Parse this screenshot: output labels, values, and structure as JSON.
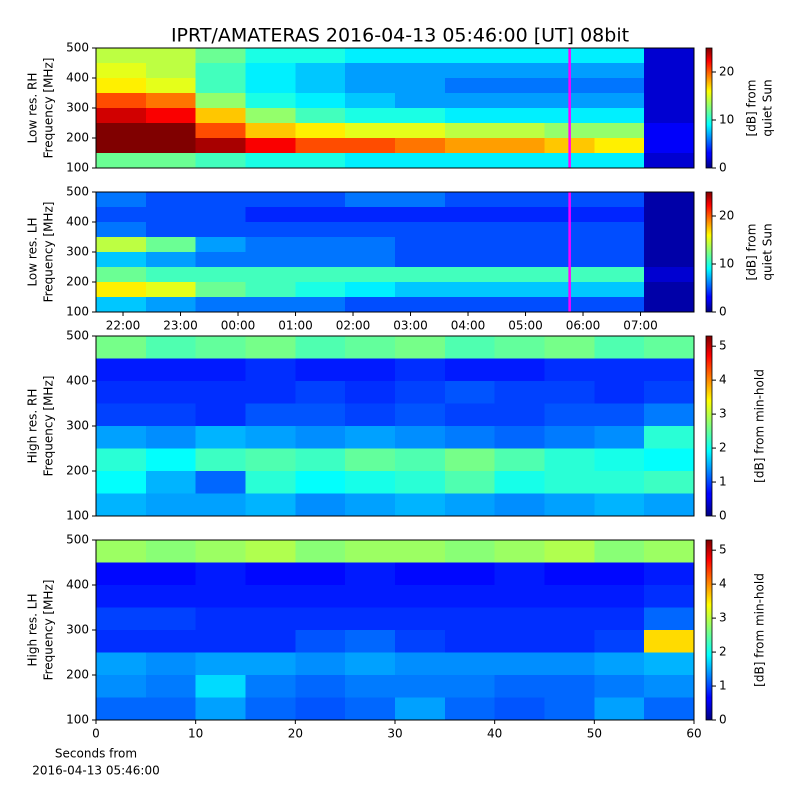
{
  "chart_data": [
    {
      "type": "heatmap",
      "title": "IPRT/AMATERAS 2016-04-13 05:46:00 [UT]   08bit",
      "ylabel_lines": [
        "Low res. RH",
        "Frequency [MHz]"
      ],
      "cbar_label_lines": [
        "[dB] from",
        "quiet Sun"
      ],
      "colormap": "jet",
      "xlim": [
        21.53,
        31.93
      ],
      "ylim": [
        100,
        500
      ],
      "yticks": [
        100,
        200,
        300,
        400,
        500
      ],
      "clim": [
        0,
        25
      ],
      "cbar_ticks": [
        0,
        10,
        20
      ],
      "marker_x": 29.767,
      "marker_color": "#ff00ff",
      "z": [
        [
          14,
          14,
          12,
          10,
          10,
          9,
          9,
          9,
          9,
          9,
          9,
          2
        ],
        [
          15,
          14,
          11,
          9,
          8,
          7,
          7,
          7,
          7,
          7,
          7,
          2
        ],
        [
          16,
          15,
          11,
          9,
          8,
          7,
          7,
          6,
          6,
          6,
          6,
          2
        ],
        [
          20,
          19,
          13,
          10,
          9,
          8,
          7,
          7,
          7,
          7,
          7,
          2
        ],
        [
          23,
          22,
          17,
          13,
          11,
          10,
          10,
          9,
          9,
          9,
          9,
          2
        ],
        [
          25,
          25,
          20,
          17,
          16,
          15,
          15,
          14,
          14,
          13,
          13,
          3
        ],
        [
          25,
          25,
          24,
          22,
          20,
          20,
          19,
          18,
          18,
          17,
          16,
          3
        ],
        [
          12,
          12,
          11,
          10,
          10,
          9,
          9,
          9,
          9,
          9,
          9,
          2
        ]
      ]
    },
    {
      "type": "heatmap",
      "ylabel_lines": [
        "Low res. LH",
        "Frequency [MHz]"
      ],
      "cbar_label_lines": [
        "[dB] from",
        "quiet Sun"
      ],
      "colormap": "jet",
      "xlim": [
        21.53,
        31.93
      ],
      "ylim": [
        100,
        500
      ],
      "yticks": [
        100,
        200,
        300,
        400,
        500
      ],
      "xticks": [
        {
          "value": 22,
          "label": "22:00"
        },
        {
          "value": 23,
          "label": "23:00"
        },
        {
          "value": 24,
          "label": "00:00"
        },
        {
          "value": 25,
          "label": "01:00"
        },
        {
          "value": 26,
          "label": "02:00"
        },
        {
          "value": 27,
          "label": "03:00"
        },
        {
          "value": 28,
          "label": "04:00"
        },
        {
          "value": 29,
          "label": "05:00"
        },
        {
          "value": 30,
          "label": "06:00"
        },
        {
          "value": 31,
          "label": "07:00"
        }
      ],
      "clim": [
        0,
        25
      ],
      "cbar_ticks": [
        0,
        10,
        20
      ],
      "marker_x": 29.767,
      "marker_color": "#ff00ff",
      "z": [
        [
          6,
          5,
          5,
          5,
          5,
          6,
          6,
          5,
          5,
          5,
          5,
          1
        ],
        [
          5,
          5,
          5,
          4,
          4,
          4,
          4,
          4,
          4,
          4,
          4,
          1
        ],
        [
          6,
          5,
          5,
          5,
          5,
          5,
          5,
          5,
          5,
          5,
          5,
          1
        ],
        [
          14,
          12,
          7,
          6,
          6,
          6,
          5,
          5,
          5,
          5,
          5,
          1
        ],
        [
          8,
          7,
          6,
          6,
          6,
          6,
          5,
          5,
          5,
          5,
          5,
          1
        ],
        [
          12,
          11,
          11,
          11,
          11,
          11,
          11,
          11,
          11,
          11,
          11,
          2
        ],
        [
          16,
          15,
          12,
          11,
          10,
          9,
          8,
          8,
          8,
          8,
          8,
          1
        ],
        [
          8,
          7,
          6,
          6,
          6,
          5,
          5,
          5,
          5,
          5,
          5,
          1
        ]
      ]
    },
    {
      "type": "heatmap",
      "ylabel_lines": [
        "High res. RH",
        "Frequency [MHz]"
      ],
      "cbar_label_lines": [
        "[dB] from min-hold"
      ],
      "colormap": "jet",
      "xlim": [
        0,
        60
      ],
      "ylim": [
        100,
        500
      ],
      "yticks": [
        100,
        200,
        300,
        400,
        500
      ],
      "clim": [
        0,
        5.3
      ],
      "cbar_ticks": [
        0,
        1,
        2,
        3,
        4,
        5
      ],
      "z": [
        [
          2.6,
          2.4,
          2.5,
          2.6,
          2.4,
          2.5,
          2.6,
          2.4,
          2.5,
          2.6,
          2.4,
          2.5
        ],
        [
          0.8,
          0.8,
          0.8,
          0.9,
          0.8,
          0.8,
          0.9,
          0.8,
          0.8,
          0.9,
          0.9,
          0.9
        ],
        [
          0.9,
          0.9,
          0.9,
          0.9,
          1.0,
          0.9,
          1.0,
          1.1,
          1.0,
          1.0,
          0.9,
          1.0
        ],
        [
          1.0,
          1.0,
          0.9,
          1.1,
          1.1,
          1.0,
          1.1,
          1.0,
          1.0,
          1.1,
          1.1,
          1.3
        ],
        [
          1.5,
          1.4,
          1.6,
          1.5,
          1.4,
          1.5,
          1.4,
          1.3,
          1.2,
          1.3,
          1.4,
          2.2
        ],
        [
          2.2,
          2.0,
          2.3,
          2.4,
          2.3,
          2.5,
          2.4,
          2.6,
          2.4,
          2.2,
          2.1,
          2.0
        ],
        [
          2.0,
          1.6,
          1.2,
          2.2,
          2.0,
          2.1,
          2.2,
          2.4,
          2.1,
          2.2,
          2.2,
          2.3
        ],
        [
          1.6,
          1.5,
          1.5,
          1.6,
          1.4,
          1.5,
          1.6,
          1.5,
          1.4,
          1.5,
          1.6,
          1.5
        ]
      ]
    },
    {
      "type": "heatmap",
      "ylabel_lines": [
        "High res. LH",
        "Frequency [MHz]"
      ],
      "cbar_label_lines": [
        "[dB] from min-hold"
      ],
      "xlabel_lines": [
        "Seconds from",
        "2016-04-13 05:46:00"
      ],
      "colormap": "jet",
      "xlim": [
        0,
        60
      ],
      "ylim": [
        100,
        500
      ],
      "yticks": [
        100,
        200,
        300,
        400,
        500
      ],
      "xticks": [
        0,
        10,
        20,
        30,
        40,
        50,
        60
      ],
      "clim": [
        0,
        5.3
      ],
      "cbar_ticks": [
        0,
        1,
        2,
        3,
        4,
        5
      ],
      "z": [
        [
          2.8,
          2.7,
          2.8,
          2.9,
          2.7,
          2.8,
          2.8,
          2.7,
          2.8,
          2.9,
          2.7,
          2.8
        ],
        [
          0.7,
          0.7,
          0.8,
          0.7,
          0.7,
          0.8,
          0.7,
          0.7,
          0.8,
          0.7,
          0.7,
          0.8
        ],
        [
          0.8,
          0.8,
          0.8,
          0.8,
          0.8,
          0.8,
          0.8,
          0.8,
          0.8,
          0.8,
          0.8,
          0.9
        ],
        [
          1.0,
          1.0,
          0.9,
          0.9,
          0.9,
          0.9,
          0.9,
          0.9,
          0.9,
          0.9,
          0.9,
          1.2
        ],
        [
          0.9,
          0.9,
          0.9,
          0.9,
          1.1,
          1.2,
          1.0,
          0.9,
          0.9,
          0.9,
          1.0,
          3.5
        ],
        [
          1.5,
          1.4,
          1.5,
          1.5,
          1.4,
          1.5,
          1.4,
          1.4,
          1.4,
          1.4,
          1.5,
          1.6
        ],
        [
          1.4,
          1.3,
          1.8,
          1.3,
          1.2,
          1.3,
          1.3,
          1.3,
          1.2,
          1.2,
          1.3,
          1.4
        ],
        [
          1.2,
          1.2,
          1.5,
          1.2,
          1.1,
          1.2,
          1.5,
          1.2,
          1.1,
          1.2,
          1.5,
          1.2
        ]
      ]
    }
  ]
}
